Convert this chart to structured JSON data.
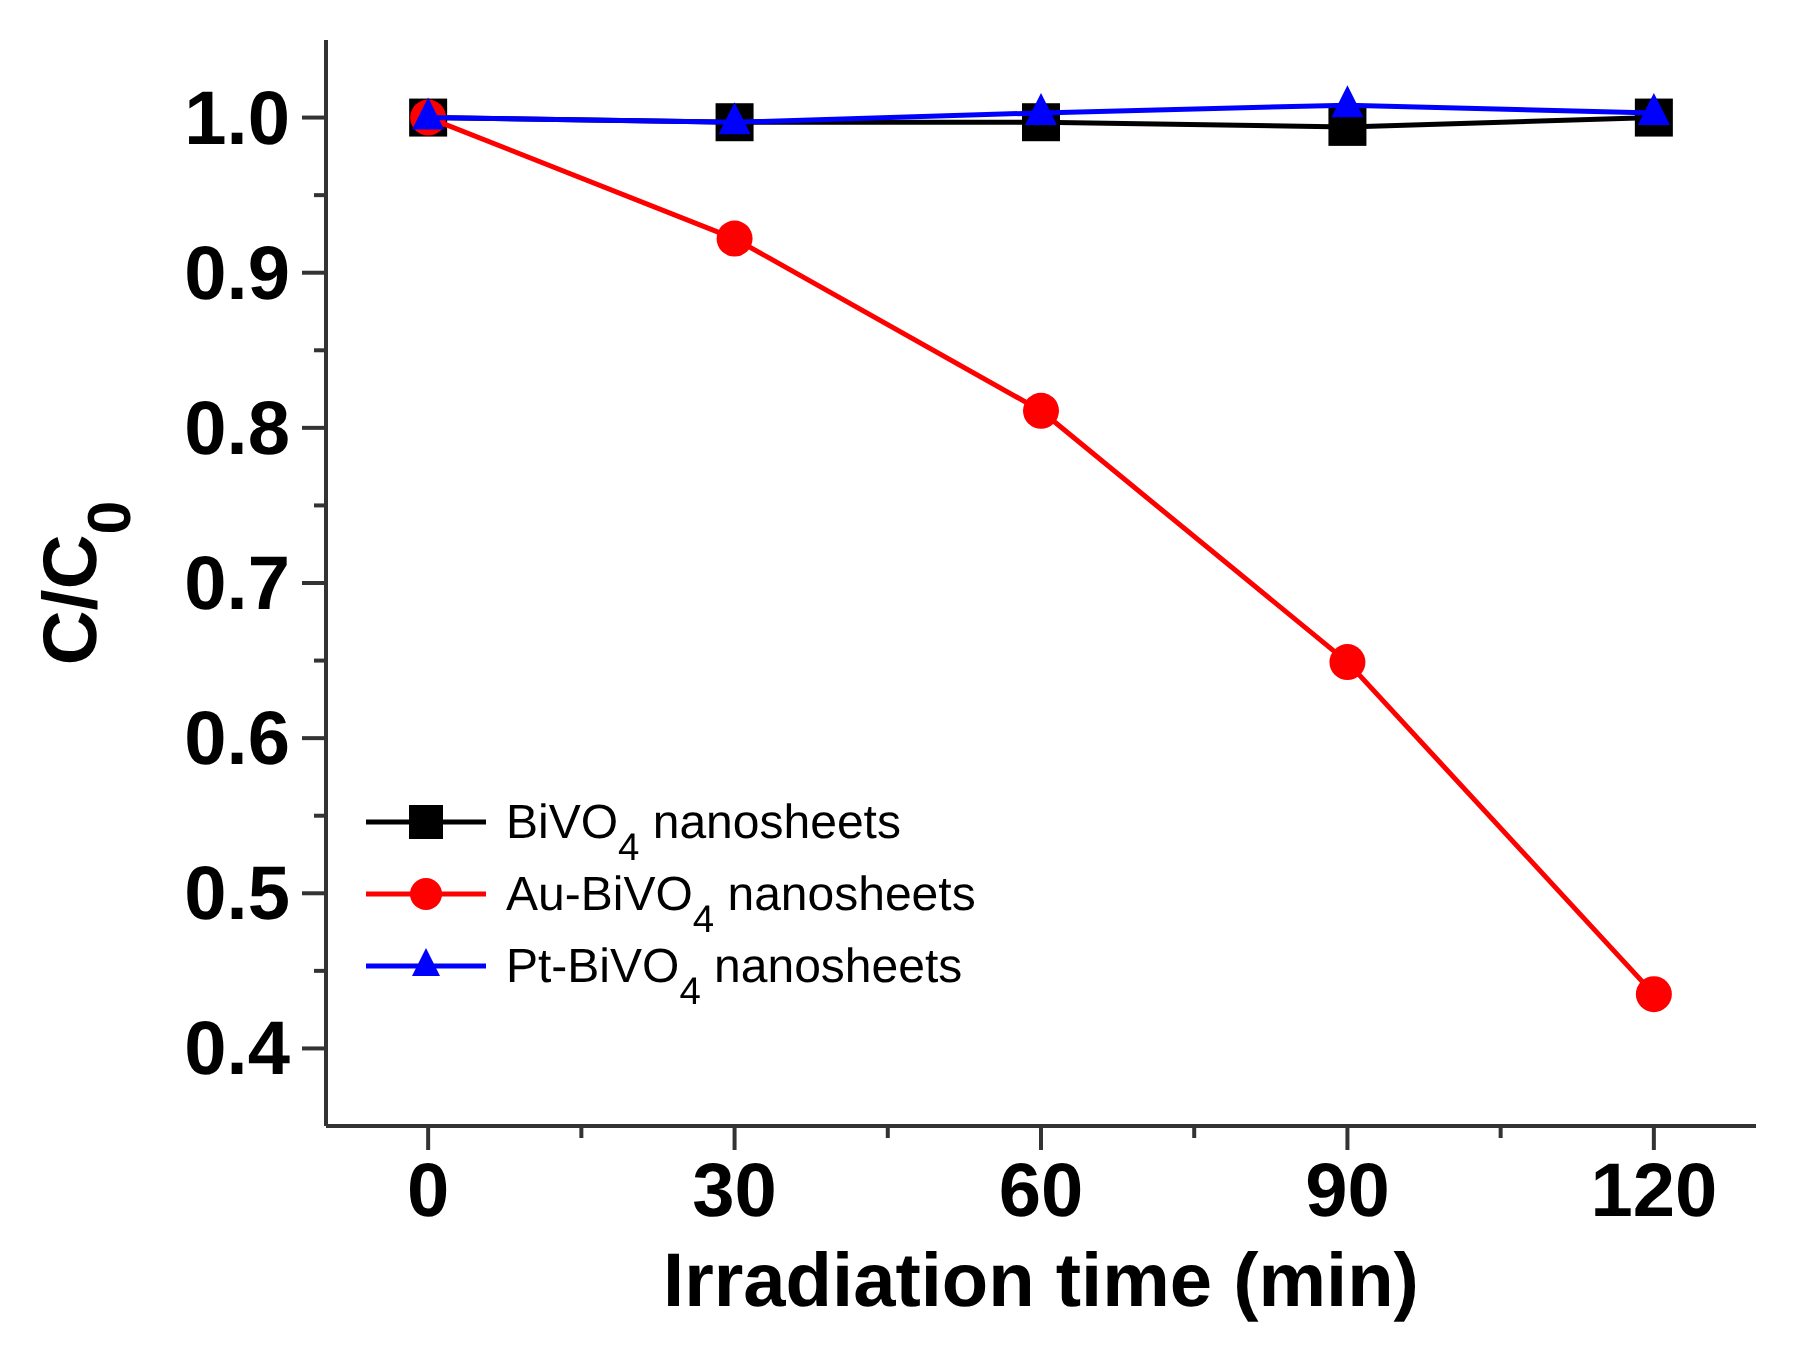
{
  "chart_data": {
    "type": "line",
    "xlabel": "Irradiation time (min)",
    "ylabel": "C/C$_{0}$",
    "x": [
      0,
      30,
      60,
      90,
      120
    ],
    "series": [
      {
        "name": "BiVO$_{4}$ nanosheets",
        "color": "#000000",
        "marker": "square",
        "values": [
          1.0,
          0.997,
          0.997,
          0.994,
          1.0
        ]
      },
      {
        "name": "Au-BiVO$_{4}$ nanosheets",
        "color": "#ff0000",
        "marker": "circle",
        "values": [
          1.0,
          0.922,
          0.811,
          0.649,
          0.435
        ]
      },
      {
        "name": "Pt-BiVO$_{4}$ nanosheets",
        "color": "#0000ff",
        "marker": "triangle",
        "values": [
          1.0,
          0.997,
          1.003,
          1.008,
          1.003
        ]
      }
    ],
    "xlim": [
      -10,
      130
    ],
    "xticks": [
      0,
      {
        "value": 15,
        "label": null
      },
      30,
      {
        "value": 45,
        "label": null
      },
      60,
      {
        "value": 75,
        "label": null
      },
      90,
      {
        "value": 105,
        "label": null
      },
      120
    ],
    "ylim": [
      0.35,
      1.05
    ],
    "yticks": [
      {
        "value": 0.4,
        "label": "0.4"
      },
      {
        "value": 0.45,
        "label": null
      },
      {
        "value": 0.5,
        "label": "0.5"
      },
      {
        "value": 0.55,
        "label": null
      },
      {
        "value": 0.6,
        "label": "0.6"
      },
      {
        "value": 0.65,
        "label": null
      },
      {
        "value": 0.7,
        "label": "0.7"
      },
      {
        "value": 0.75,
        "label": null
      },
      {
        "value": 0.8,
        "label": "0.8"
      },
      {
        "value": 0.85,
        "label": null
      },
      {
        "value": 0.9,
        "label": "0.9"
      },
      {
        "value": 0.95,
        "label": null
      },
      {
        "value": 1.0,
        "label": "1.0"
      }
    ],
    "legend": "bottom left",
    "grid": false,
    "line_style": "solid"
  }
}
